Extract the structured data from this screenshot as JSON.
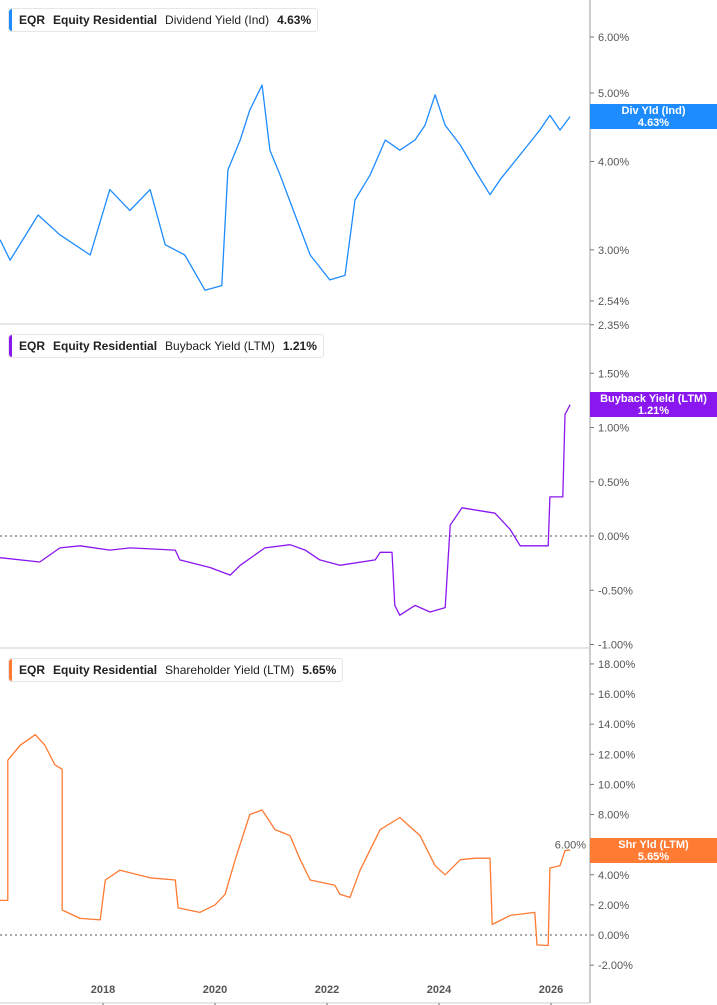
{
  "ticker": "EQR",
  "company": "Equity Residential",
  "chart_data": [
    {
      "type": "line",
      "title": "Dividend Yield (Ind)",
      "last_value": "4.63%",
      "tag_label": "Div Yld (Ind)",
      "color": "#1e8cff",
      "y_scale": "log",
      "ylim": [
        2.35,
        6.6
      ],
      "y_ticks": [
        "6.00%",
        "5.00%",
        "4.00%",
        "3.00%",
        "2.54%",
        "2.35%"
      ],
      "points": [
        [
          2016.16,
          3.1
        ],
        [
          2016.34,
          2.9
        ],
        [
          2016.84,
          3.36
        ],
        [
          2017.23,
          3.15
        ],
        [
          2017.77,
          2.95
        ],
        [
          2018.12,
          3.65
        ],
        [
          2018.48,
          3.41
        ],
        [
          2018.84,
          3.65
        ],
        [
          2019.11,
          3.05
        ],
        [
          2019.46,
          2.95
        ],
        [
          2019.82,
          2.63
        ],
        [
          2020.12,
          2.67
        ],
        [
          2020.23,
          3.89
        ],
        [
          2020.45,
          4.29
        ],
        [
          2020.62,
          4.73
        ],
        [
          2020.84,
          5.13
        ],
        [
          2020.98,
          4.15
        ],
        [
          2021.16,
          3.83
        ],
        [
          2021.43,
          3.36
        ],
        [
          2021.7,
          2.95
        ],
        [
          2022.05,
          2.72
        ],
        [
          2022.32,
          2.76
        ],
        [
          2022.5,
          3.53
        ],
        [
          2022.77,
          3.83
        ],
        [
          2023.04,
          4.29
        ],
        [
          2023.3,
          4.15
        ],
        [
          2023.57,
          4.29
        ],
        [
          2023.75,
          4.5
        ],
        [
          2023.93,
          4.97
        ],
        [
          2024.11,
          4.5
        ],
        [
          2024.38,
          4.22
        ],
        [
          2024.64,
          3.89
        ],
        [
          2024.91,
          3.59
        ],
        [
          2025.09,
          3.77
        ],
        [
          2025.45,
          4.09
        ],
        [
          2025.8,
          4.43
        ],
        [
          2025.98,
          4.65
        ],
        [
          2026.16,
          4.43
        ],
        [
          2026.34,
          4.63
        ]
      ]
    },
    {
      "type": "line",
      "title": "Buyback Yield (LTM)",
      "last_value": "1.21%",
      "tag_label": "Buyback Yield (LTM)",
      "color": "#8a17f0",
      "ylim": [
        -1.05,
        1.6
      ],
      "y_ticks": [
        "1.50%",
        "1.00%",
        "0.50%",
        "0.00%",
        "-0.50%",
        "-1.00%"
      ],
      "points": [
        [
          2016.16,
          -0.2
        ],
        [
          2016.87,
          -0.24
        ],
        [
          2017.23,
          -0.11
        ],
        [
          2017.59,
          -0.09
        ],
        [
          2018.12,
          -0.13
        ],
        [
          2018.48,
          -0.11
        ],
        [
          2019.29,
          -0.13
        ],
        [
          2019.37,
          -0.22
        ],
        [
          2019.91,
          -0.29
        ],
        [
          2020.27,
          -0.36
        ],
        [
          2020.45,
          -0.27
        ],
        [
          2020.89,
          -0.11
        ],
        [
          2021.34,
          -0.08
        ],
        [
          2021.61,
          -0.13
        ],
        [
          2021.87,
          -0.22
        ],
        [
          2022.23,
          -0.27
        ],
        [
          2022.86,
          -0.22
        ],
        [
          2022.95,
          -0.15
        ],
        [
          2023.16,
          -0.15
        ],
        [
          2023.21,
          -0.64
        ],
        [
          2023.3,
          -0.73
        ],
        [
          2023.57,
          -0.64
        ],
        [
          2023.84,
          -0.7
        ],
        [
          2024.11,
          -0.66
        ],
        [
          2024.2,
          0.1
        ],
        [
          2024.41,
          0.26
        ],
        [
          2025.0,
          0.21
        ],
        [
          2025.27,
          0.06
        ],
        [
          2025.45,
          -0.09
        ],
        [
          2025.95,
          -0.09
        ],
        [
          2025.98,
          0.36
        ],
        [
          2026.21,
          0.36
        ],
        [
          2026.25,
          1.12
        ],
        [
          2026.34,
          1.21
        ]
      ]
    },
    {
      "type": "line",
      "title": "Shareholder Yield (LTM)",
      "last_value": "5.65%",
      "tag_label": "Shr Yld (LTM)",
      "color": "#ff7a33",
      "ylim": [
        -2.5,
        18.5
      ],
      "y_ticks": [
        "18.00%",
        "16.00%",
        "14.00%",
        "12.00%",
        "10.00%",
        "8.00%",
        "6.00%",
        "4.00%",
        "2.00%",
        "0.00%",
        "-2.00%"
      ],
      "points": [
        [
          2016.16,
          2.3
        ],
        [
          2016.3,
          2.3
        ],
        [
          2016.3,
          11.6
        ],
        [
          2016.52,
          12.6
        ],
        [
          2016.79,
          13.3
        ],
        [
          2016.96,
          12.6
        ],
        [
          2017.14,
          11.3
        ],
        [
          2017.27,
          11.0
        ],
        [
          2017.27,
          1.66
        ],
        [
          2017.59,
          1.1
        ],
        [
          2017.95,
          1.0
        ],
        [
          2018.04,
          3.65
        ],
        [
          2018.3,
          4.3
        ],
        [
          2018.84,
          3.8
        ],
        [
          2019.29,
          3.65
        ],
        [
          2019.34,
          1.8
        ],
        [
          2019.73,
          1.5
        ],
        [
          2020.0,
          2.0
        ],
        [
          2020.18,
          2.7
        ],
        [
          2020.36,
          5.0
        ],
        [
          2020.62,
          8.0
        ],
        [
          2020.84,
          8.3
        ],
        [
          2021.07,
          7.0
        ],
        [
          2021.34,
          6.6
        ],
        [
          2021.52,
          5.0
        ],
        [
          2021.7,
          3.65
        ],
        [
          2022.14,
          3.3
        ],
        [
          2022.23,
          2.7
        ],
        [
          2022.41,
          2.5
        ],
        [
          2022.59,
          4.3
        ],
        [
          2022.95,
          7.0
        ],
        [
          2023.3,
          7.8
        ],
        [
          2023.66,
          6.6
        ],
        [
          2023.93,
          4.6
        ],
        [
          2024.11,
          4.0
        ],
        [
          2024.38,
          5.0
        ],
        [
          2024.64,
          5.1
        ],
        [
          2024.91,
          5.1
        ],
        [
          2024.95,
          0.7
        ],
        [
          2025.27,
          1.3
        ],
        [
          2025.71,
          1.5
        ],
        [
          2025.75,
          -0.66
        ],
        [
          2025.95,
          -0.7
        ],
        [
          2025.98,
          4.45
        ],
        [
          2026.16,
          4.6
        ],
        [
          2026.25,
          5.6
        ],
        [
          2026.34,
          5.65
        ]
      ]
    }
  ],
  "x_ticks": [
    "2018",
    "2020",
    "2022",
    "2024",
    "2026"
  ]
}
